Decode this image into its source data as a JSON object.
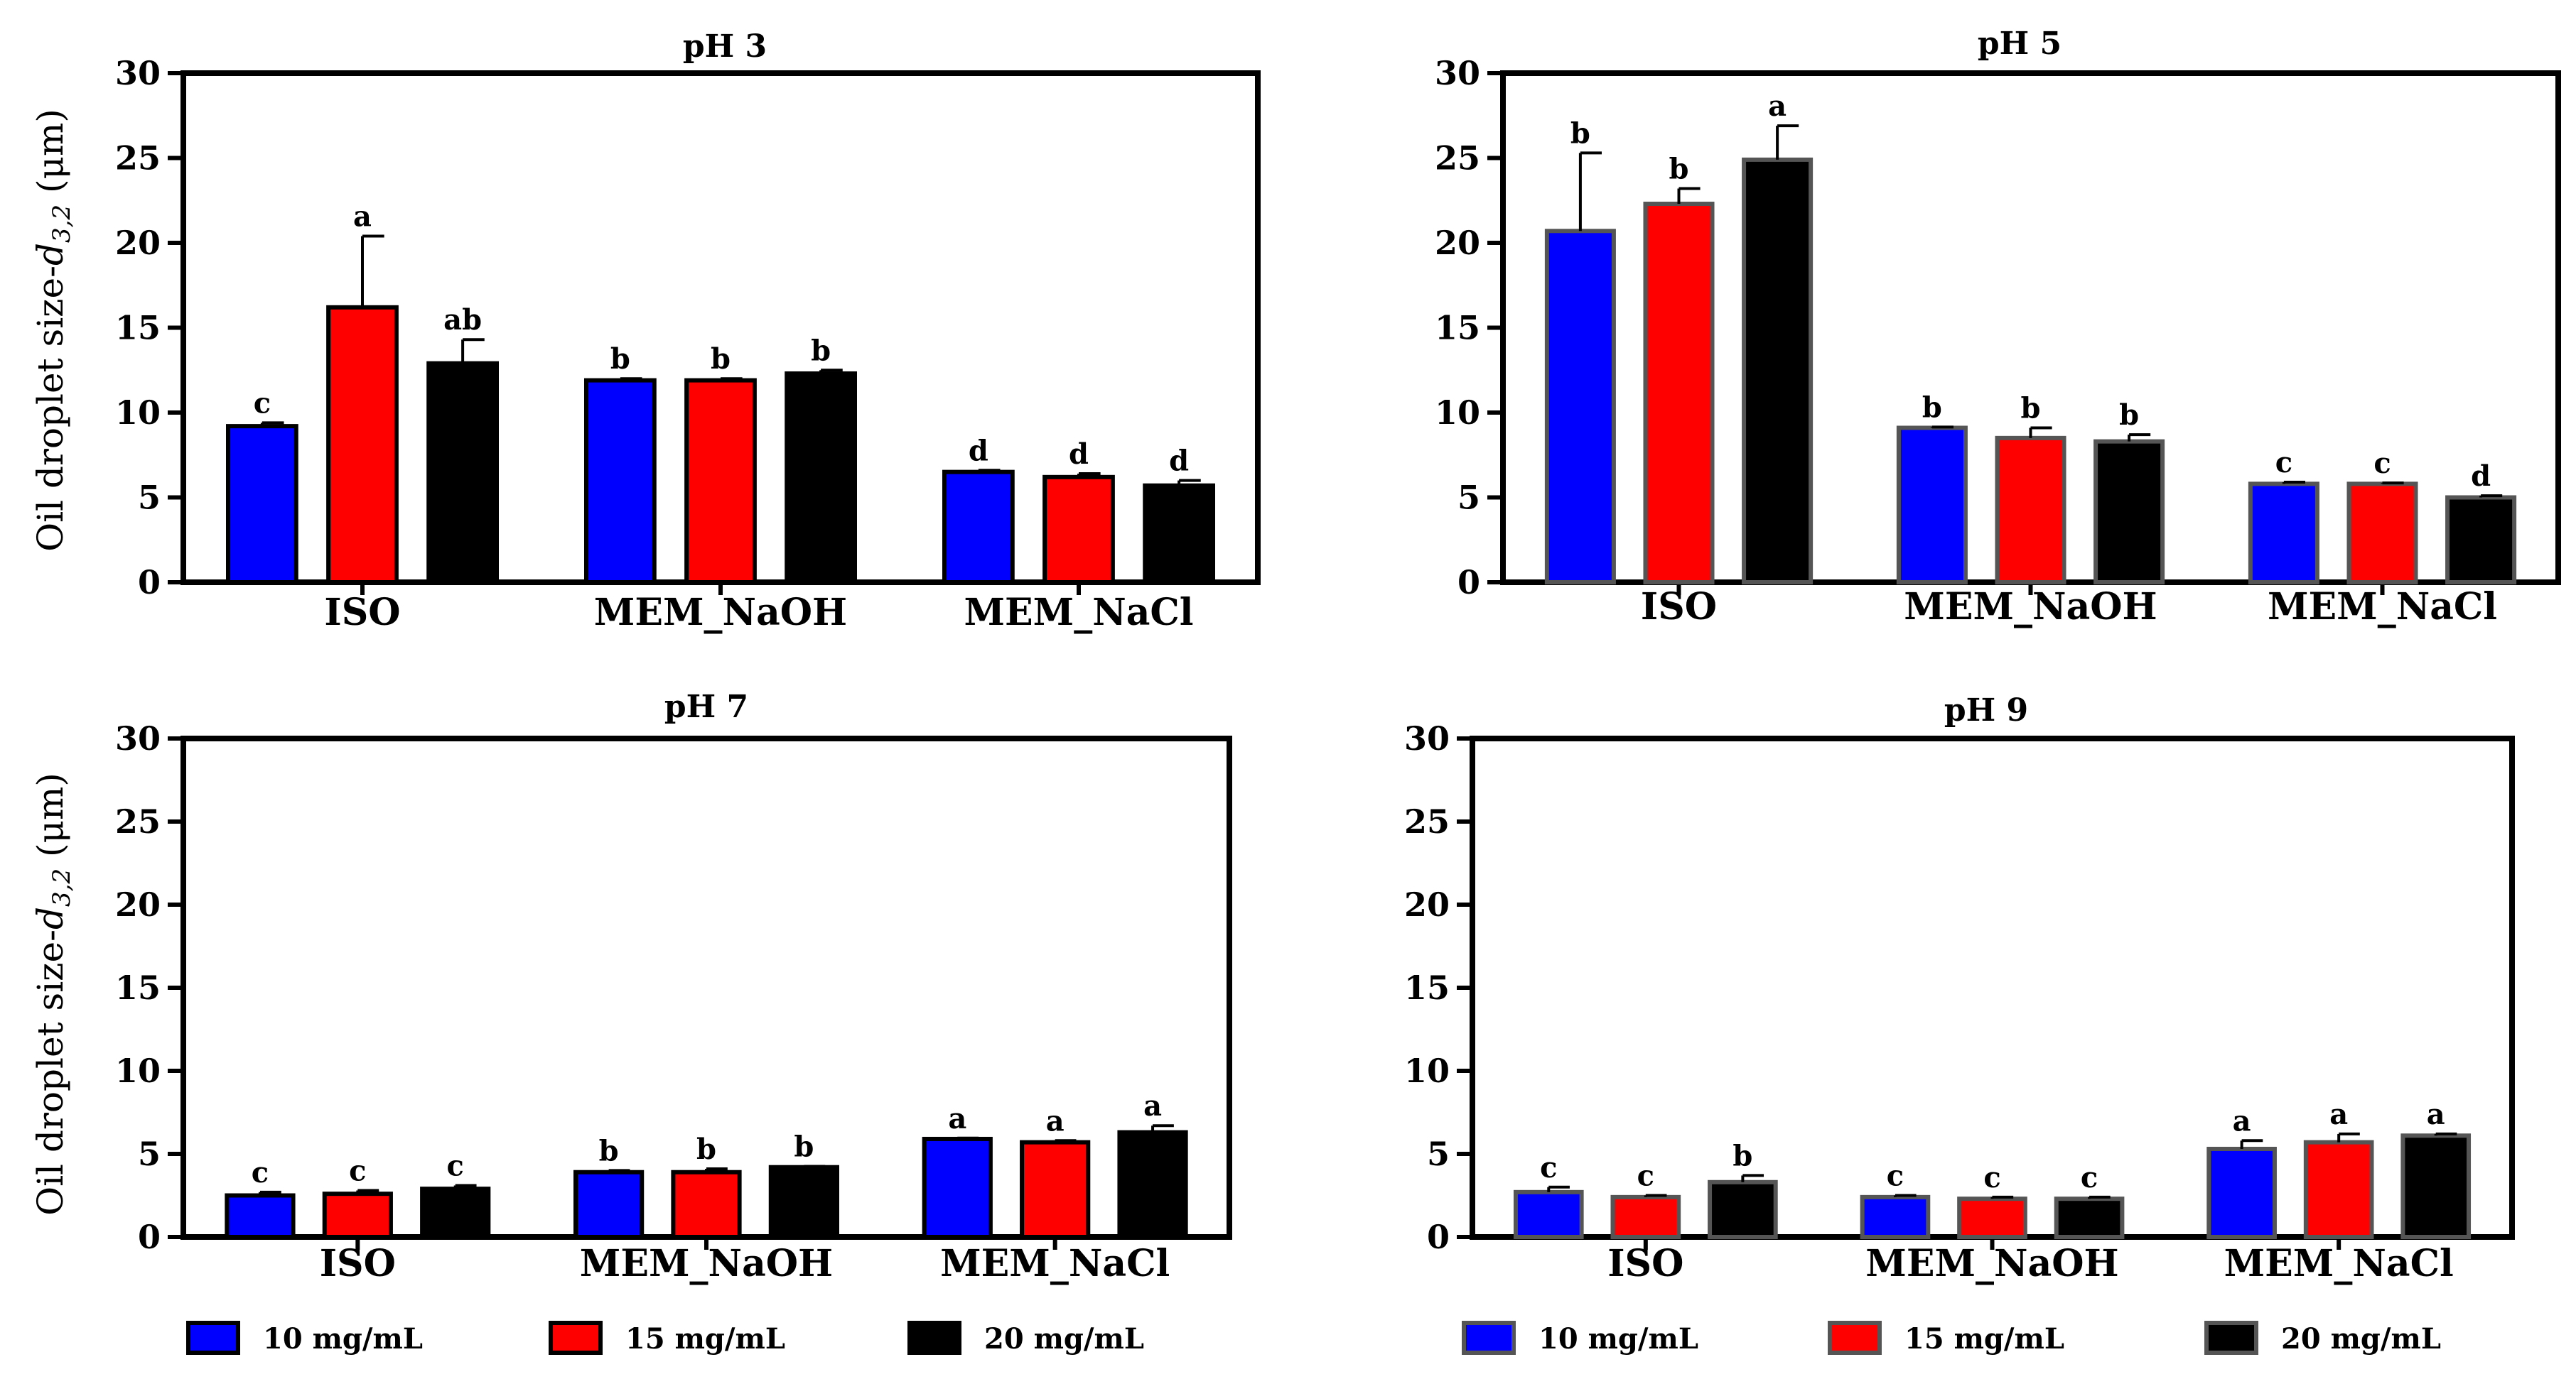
{
  "colors": {
    "s10": "#0000ff",
    "s15": "#ff0000",
    "s20": "#000000",
    "axis": "#000000",
    "errorbar": "#000000"
  },
  "ylabel_main": "Oil droplet size-",
  "ylabel_sub": "3,2",
  "ylabel_unit": "(μm)",
  "legends": [
    {
      "items": [
        "10 mg/mL",
        "15 mg/mL",
        "20 mg/mL"
      ]
    },
    {
      "items": [
        "10 mg/mL",
        "15 mg/mL",
        "20 mg/mL"
      ]
    }
  ],
  "chart_data": [
    {
      "type": "bar",
      "title": "pH 3",
      "ylim": [
        0,
        30
      ],
      "yticks": [
        "0",
        "5",
        "10",
        "15",
        "20",
        "25",
        "30"
      ],
      "categories": [
        "ISO",
        "MEM_NaOH",
        "MEM_NaCl"
      ],
      "series": [
        {
          "name": "10 mg/mL",
          "values": [
            9.2,
            11.9,
            6.5
          ],
          "errors": [
            0.2,
            0.1,
            0.1
          ],
          "letters": [
            "c",
            "b",
            "d"
          ]
        },
        {
          "name": "15 mg/mL",
          "values": [
            16.2,
            11.9,
            6.2
          ],
          "errors": [
            4.2,
            0.1,
            0.2
          ],
          "letters": [
            "a",
            "b",
            "d"
          ]
        },
        {
          "name": "20 mg/mL",
          "values": [
            12.9,
            12.3,
            5.7
          ],
          "errors": [
            1.4,
            0.2,
            0.3
          ],
          "letters": [
            "ab",
            "b",
            "d"
          ]
        }
      ]
    },
    {
      "type": "bar",
      "title": "pH 5",
      "ylim": [
        0,
        30
      ],
      "yticks": [
        "0",
        "5",
        "10",
        "15",
        "20",
        "25",
        "30"
      ],
      "categories": [
        "ISO",
        "MEM_NaOH",
        "MEM_NaCl"
      ],
      "series": [
        {
          "name": "10 mg/mL",
          "values": [
            20.7,
            9.1,
            5.8
          ],
          "errors": [
            4.6,
            0.05,
            0.1
          ],
          "letters": [
            "b",
            "b",
            "c"
          ]
        },
        {
          "name": "15 mg/mL",
          "values": [
            22.3,
            8.5,
            5.8
          ],
          "errors": [
            0.9,
            0.6,
            0.05
          ],
          "letters": [
            "b",
            "b",
            "c"
          ]
        },
        {
          "name": "20 mg/mL",
          "values": [
            24.9,
            8.3,
            5.0
          ],
          "errors": [
            2.0,
            0.4,
            0.1
          ],
          "letters": [
            "a",
            "b",
            "d"
          ]
        }
      ]
    },
    {
      "type": "bar",
      "title": "pH 7",
      "ylim": [
        0,
        30
      ],
      "yticks": [
        "0",
        "5",
        "10",
        "15",
        "20",
        "25",
        "30"
      ],
      "categories": [
        "ISO",
        "MEM_NaOH",
        "MEM_NaCl"
      ],
      "series": [
        {
          "name": "10 mg/mL",
          "values": [
            2.5,
            3.9,
            5.9
          ],
          "errors": [
            0.2,
            0.1,
            0.05
          ],
          "letters": [
            "c",
            "b",
            "a"
          ]
        },
        {
          "name": "15 mg/mL",
          "values": [
            2.6,
            3.9,
            5.7
          ],
          "errors": [
            0.2,
            0.2,
            0.1
          ],
          "letters": [
            "c",
            "b",
            "a"
          ]
        },
        {
          "name": "20 mg/mL",
          "values": [
            2.9,
            4.2,
            6.3
          ],
          "errors": [
            0.2,
            0.05,
            0.4
          ],
          "letters": [
            "c",
            "b",
            "a"
          ]
        }
      ]
    },
    {
      "type": "bar",
      "title": "pH 9",
      "ylim": [
        0,
        30
      ],
      "yticks": [
        "0",
        "5",
        "10",
        "15",
        "20",
        "25",
        "30"
      ],
      "categories": [
        "ISO",
        "MEM_NaOH",
        "MEM_NaCl"
      ],
      "series": [
        {
          "name": "10 mg/mL",
          "values": [
            2.7,
            2.4,
            5.3
          ],
          "errors": [
            0.3,
            0.1,
            0.5
          ],
          "letters": [
            "c",
            "c",
            "a"
          ]
        },
        {
          "name": "15 mg/mL",
          "values": [
            2.4,
            2.3,
            5.7
          ],
          "errors": [
            0.1,
            0.1,
            0.5
          ],
          "letters": [
            "c",
            "c",
            "a"
          ]
        },
        {
          "name": "20 mg/mL",
          "values": [
            3.3,
            2.3,
            6.1
          ],
          "errors": [
            0.4,
            0.1,
            0.1
          ],
          "letters": [
            "b",
            "c",
            "a"
          ]
        }
      ]
    }
  ]
}
